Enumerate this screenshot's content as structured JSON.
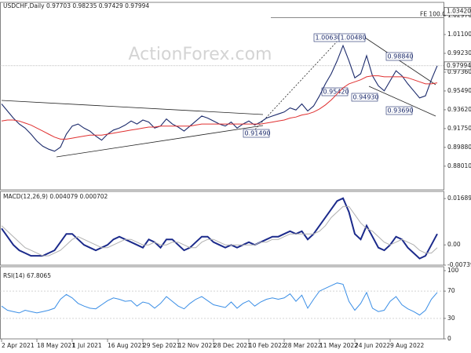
{
  "chart_data": [
    {
      "type": "line",
      "title": "USDCHF,Daily 0.97703 0.98235 0.97429 0.97994",
      "watermark": "ActionForex.com",
      "categories": [
        "2 Apr 2021",
        null,
        null,
        null,
        null,
        null,
        "18 May 2021",
        null,
        null,
        null,
        null,
        null,
        "1 Jul 2021",
        null,
        null,
        null,
        null,
        null,
        "16 Aug 2021",
        null,
        null,
        null,
        null,
        null,
        "29 Sep 2021",
        null,
        null,
        null,
        null,
        null,
        "12 Nov 2021",
        null,
        null,
        null,
        null,
        null,
        "28 Dec 2021",
        null,
        null,
        null,
        null,
        null,
        "10 Feb 2022",
        null,
        null,
        null,
        null,
        null,
        "28 Mar 2022",
        null,
        null,
        null,
        null,
        null,
        "11 May 2022",
        null,
        null,
        null,
        null,
        null,
        "24 Jun 2022",
        null,
        null,
        null,
        null,
        null,
        "9 Aug 2022",
        null,
        null,
        null,
        null,
        null,
        null,
        null,
        null
      ],
      "series": [
        {
          "name": "USDCHF",
          "color": "#1b2a6b",
          "values": [
            0.942,
            0.935,
            0.928,
            0.922,
            0.918,
            0.912,
            0.905,
            0.9,
            0.897,
            0.895,
            0.899,
            0.912,
            0.92,
            0.922,
            0.918,
            0.915,
            0.91,
            0.906,
            0.912,
            0.916,
            0.918,
            0.921,
            0.925,
            0.922,
            0.926,
            0.924,
            0.918,
            0.92,
            0.927,
            0.922,
            0.919,
            0.915,
            0.92,
            0.925,
            0.93,
            0.928,
            0.925,
            0.922,
            0.92,
            0.924,
            0.918,
            0.922,
            0.925,
            0.921,
            0.924,
            0.928,
            0.93,
            0.932,
            0.934,
            0.938,
            0.936,
            0.942,
            0.935,
            0.94,
            0.95,
            0.962,
            0.972,
            0.985,
            1.0,
            0.985,
            0.968,
            0.972,
            0.99,
            0.97,
            0.96,
            0.955,
            0.965,
            0.975,
            0.97,
            0.962,
            0.955,
            0.948,
            0.95,
            0.966,
            0.98
          ]
        },
        {
          "name": "SMA",
          "color": "#e03030",
          "values": [
            0.925,
            0.926,
            0.926,
            0.925,
            0.923,
            0.921,
            0.918,
            0.915,
            0.912,
            0.909,
            0.907,
            0.907,
            0.908,
            0.909,
            0.91,
            0.911,
            0.911,
            0.911,
            0.912,
            0.913,
            0.914,
            0.915,
            0.916,
            0.917,
            0.918,
            0.919,
            0.919,
            0.92,
            0.92,
            0.92,
            0.92,
            0.92,
            0.92,
            0.921,
            0.922,
            0.922,
            0.922,
            0.922,
            0.922,
            0.922,
            0.922,
            0.922,
            0.922,
            0.922,
            0.922,
            0.923,
            0.924,
            0.925,
            0.926,
            0.928,
            0.929,
            0.931,
            0.932,
            0.934,
            0.937,
            0.941,
            0.946,
            0.952,
            0.958,
            0.962,
            0.964,
            0.966,
            0.969,
            0.97,
            0.97,
            0.969,
            0.969,
            0.969,
            0.969,
            0.968,
            0.966,
            0.964,
            0.962,
            0.962,
            0.963
          ]
        }
      ],
      "ylim": [
        0.8566,
        1.0391
      ],
      "yticks": [
        {
          "value": 1.0297,
          "label": "1.02970"
        },
        {
          "value": 1.011,
          "label": "1.01100"
        },
        {
          "value": 0.9923,
          "label": "0.99230"
        },
        {
          "value": 0.9736,
          "label": "0.97360"
        },
        {
          "value": 0.9549,
          "label": "0.95490"
        },
        {
          "value": 0.9362,
          "label": "0.93620"
        },
        {
          "value": 0.9175,
          "label": "0.91750"
        },
        {
          "value": 0.8988,
          "label": "0.89880"
        },
        {
          "value": 0.8801,
          "label": "0.88010"
        }
      ],
      "last_price": {
        "value": 0.97994,
        "label": "0.97994"
      },
      "fe_level": {
        "value": 1.0342,
        "label": "1.03420"
      },
      "fe_text": "FE 100.0",
      "annotations": [
        "1.00630",
        "1.00480",
        "0.98840",
        "0.95420",
        "0.94930",
        "0.93690",
        "0.91490"
      ]
    },
    {
      "type": "line",
      "title": "MACD(12,26,9) 0.004079 0.000702",
      "series": [
        {
          "name": "MACD",
          "color": "#1b2a8b",
          "values": [
            0.006,
            0.003,
            0.0,
            -0.002,
            -0.003,
            -0.004,
            -0.004,
            -0.004,
            -0.003,
            -0.002,
            0.001,
            0.004,
            0.004,
            0.002,
            0.0,
            -0.001,
            -0.002,
            -0.001,
            0.0,
            0.002,
            0.003,
            0.002,
            0.001,
            0.0,
            -0.001,
            0.002,
            0.001,
            -0.001,
            0.002,
            0.002,
            0.0,
            -0.002,
            -0.001,
            0.001,
            0.003,
            0.003,
            0.001,
            0.0,
            -0.001,
            0.0,
            -0.001,
            0.0,
            0.001,
            0.0,
            0.001,
            0.002,
            0.003,
            0.003,
            0.004,
            0.005,
            0.004,
            0.005,
            0.002,
            0.004,
            0.007,
            0.01,
            0.013,
            0.016,
            0.017,
            0.012,
            0.004,
            0.002,
            0.007,
            0.003,
            -0.001,
            -0.002,
            0.0,
            0.003,
            0.002,
            -0.001,
            -0.003,
            -0.005,
            -0.004,
            0.0,
            0.004
          ]
        },
        {
          "name": "Signal",
          "color": "#b0b0b0",
          "values": [
            0.007,
            0.005,
            0.003,
            0.001,
            -0.001,
            -0.002,
            -0.003,
            -0.004,
            -0.004,
            -0.003,
            -0.002,
            0.0,
            0.002,
            0.003,
            0.002,
            0.001,
            0.0,
            -0.001,
            -0.001,
            0.0,
            0.001,
            0.002,
            0.002,
            0.001,
            0.0,
            0.0,
            0.001,
            0.0,
            0.0,
            0.001,
            0.001,
            0.0,
            -0.001,
            -0.001,
            0.001,
            0.002,
            0.002,
            0.001,
            0.0,
            0.0,
            0.0,
            0.0,
            0.0,
            0.0,
            0.001,
            0.001,
            0.002,
            0.002,
            0.003,
            0.004,
            0.004,
            0.004,
            0.004,
            0.004,
            0.005,
            0.007,
            0.01,
            0.012,
            0.014,
            0.014,
            0.011,
            0.008,
            0.006,
            0.005,
            0.003,
            0.001,
            0.0,
            0.001,
            0.002,
            0.001,
            0.0,
            -0.002,
            -0.003,
            -0.003,
            -0.001
          ]
        }
      ],
      "ylim": [
        -0.007393,
        0.0195
      ],
      "yticks": [
        0.016893,
        {
          "value": 0,
          "label": "0.00"
        },
        -0.007393
      ]
    },
    {
      "type": "line",
      "title": "RSI(14) 67.8065",
      "series": [
        {
          "name": "RSI",
          "color": "#3a8ee6",
          "values": [
            48,
            42,
            40,
            38,
            42,
            40,
            38,
            40,
            42,
            45,
            58,
            65,
            60,
            52,
            48,
            45,
            44,
            50,
            56,
            60,
            58,
            55,
            56,
            48,
            54,
            52,
            45,
            52,
            62,
            55,
            48,
            44,
            52,
            58,
            62,
            56,
            50,
            48,
            46,
            54,
            45,
            52,
            56,
            48,
            54,
            58,
            60,
            58,
            60,
            66,
            55,
            64,
            45,
            58,
            70,
            74,
            78,
            82,
            80,
            55,
            42,
            52,
            68,
            45,
            40,
            42,
            55,
            62,
            50,
            44,
            40,
            35,
            42,
            58,
            68
          ]
        }
      ],
      "ylim": [
        0,
        100
      ],
      "yticks": [
        100,
        70,
        30,
        0
      ]
    }
  ]
}
